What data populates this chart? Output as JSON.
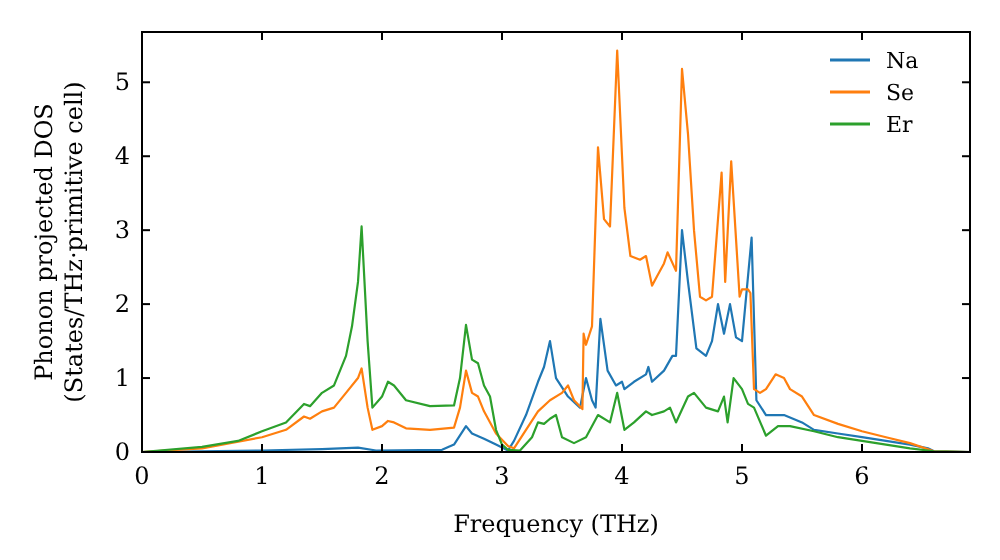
{
  "chart_data": {
    "type": "line",
    "xlabel": "Frequency (THz)",
    "ylabel": "Phonon projected DOS\n(States/THz·primitive cell)",
    "xlim": [
      0,
      6.9
    ],
    "ylim": [
      0,
      5.68
    ],
    "xticks": [
      0,
      1,
      2,
      3,
      4,
      5,
      6
    ],
    "yticks": [
      0,
      1,
      2,
      3,
      4,
      5
    ],
    "legend": "top right",
    "grid": false,
    "line_style": "solid",
    "series": [
      {
        "name": "Na",
        "color": "#1f77b4",
        "x": [
          0,
          1.0,
          1.5,
          1.8,
          1.95,
          2.5,
          2.6,
          2.7,
          2.75,
          2.85,
          2.95,
          3.05,
          3.1,
          3.2,
          3.3,
          3.35,
          3.4,
          3.45,
          3.55,
          3.65,
          3.7,
          3.75,
          3.78,
          3.82,
          3.88,
          3.95,
          4.0,
          4.02,
          4.1,
          4.2,
          4.22,
          4.25,
          4.35,
          4.42,
          4.45,
          4.5,
          4.55,
          4.62,
          4.7,
          4.75,
          4.8,
          4.85,
          4.9,
          4.95,
          5.0,
          5.08,
          5.12,
          5.2,
          5.35,
          5.5,
          5.6,
          5.8,
          6.0,
          6.2,
          6.4,
          6.55,
          6.6,
          6.9
        ],
        "values": [
          0,
          0.02,
          0.04,
          0.06,
          0.02,
          0.03,
          0.1,
          0.35,
          0.25,
          0.18,
          0.1,
          0.02,
          0.15,
          0.5,
          0.95,
          1.15,
          1.5,
          1.0,
          0.75,
          0.6,
          1.0,
          0.7,
          0.6,
          1.8,
          1.1,
          0.9,
          0.95,
          0.85,
          0.95,
          1.05,
          1.15,
          0.95,
          1.1,
          1.3,
          1.3,
          3.0,
          2.3,
          1.4,
          1.3,
          1.5,
          2.0,
          1.6,
          2.0,
          1.55,
          1.5,
          2.9,
          0.7,
          0.5,
          0.5,
          0.4,
          0.3,
          0.25,
          0.2,
          0.15,
          0.1,
          0.05,
          0.01,
          0
        ]
      },
      {
        "name": "Se",
        "color": "#ff7f0e",
        "x": [
          0,
          0.5,
          1.0,
          1.2,
          1.35,
          1.4,
          1.5,
          1.6,
          1.7,
          1.8,
          1.83,
          1.88,
          1.92,
          2.0,
          2.05,
          2.1,
          2.2,
          2.4,
          2.6,
          2.65,
          2.7,
          2.75,
          2.8,
          2.85,
          2.95,
          3.05,
          3.1,
          3.2,
          3.3,
          3.4,
          3.5,
          3.55,
          3.6,
          3.67,
          3.68,
          3.7,
          3.75,
          3.8,
          3.85,
          3.9,
          3.96,
          4.02,
          4.07,
          4.15,
          4.2,
          4.25,
          4.3,
          4.35,
          4.38,
          4.45,
          4.5,
          4.55,
          4.6,
          4.65,
          4.7,
          4.75,
          4.83,
          4.86,
          4.91,
          4.98,
          5.0,
          5.05,
          5.07,
          5.1,
          5.15,
          5.2,
          5.28,
          5.35,
          5.4,
          5.5,
          5.6,
          5.8,
          6.0,
          6.2,
          6.4,
          6.6,
          6.9
        ],
        "values": [
          0,
          0.05,
          0.2,
          0.3,
          0.48,
          0.45,
          0.55,
          0.6,
          0.8,
          1.0,
          1.13,
          0.6,
          0.3,
          0.35,
          0.42,
          0.4,
          0.32,
          0.3,
          0.33,
          0.6,
          1.1,
          0.8,
          0.75,
          0.55,
          0.25,
          0.08,
          0.05,
          0.3,
          0.55,
          0.7,
          0.8,
          0.9,
          0.7,
          0.58,
          1.6,
          1.45,
          1.7,
          4.12,
          3.15,
          3.05,
          5.43,
          3.3,
          2.65,
          2.6,
          2.65,
          2.25,
          2.4,
          2.55,
          2.7,
          2.45,
          5.18,
          4.3,
          3.0,
          2.1,
          2.05,
          2.1,
          3.78,
          2.3,
          3.93,
          2.1,
          2.2,
          2.2,
          2.15,
          0.85,
          0.8,
          0.85,
          1.05,
          1.0,
          0.85,
          0.75,
          0.5,
          0.38,
          0.28,
          0.2,
          0.12,
          0.01,
          0
        ]
      },
      {
        "name": "Er",
        "color": "#2ca02c",
        "x": [
          0,
          0.5,
          0.8,
          1.0,
          1.2,
          1.35,
          1.4,
          1.5,
          1.6,
          1.7,
          1.75,
          1.8,
          1.83,
          1.88,
          1.92,
          2.0,
          2.05,
          2.1,
          2.2,
          2.4,
          2.6,
          2.65,
          2.7,
          2.75,
          2.8,
          2.85,
          2.9,
          2.95,
          3.0,
          3.05,
          3.15,
          3.25,
          3.3,
          3.35,
          3.4,
          3.45,
          3.5,
          3.6,
          3.7,
          3.8,
          3.9,
          3.96,
          4.02,
          4.1,
          4.2,
          4.25,
          4.35,
          4.4,
          4.45,
          4.55,
          4.6,
          4.7,
          4.8,
          4.85,
          4.88,
          4.93,
          5.0,
          5.05,
          5.1,
          5.2,
          5.3,
          5.4,
          5.6,
          5.8,
          6.0,
          6.2,
          6.4,
          6.6,
          6.9
        ],
        "values": [
          0,
          0.07,
          0.15,
          0.28,
          0.4,
          0.65,
          0.62,
          0.8,
          0.9,
          1.3,
          1.7,
          2.3,
          3.05,
          1.5,
          0.6,
          0.75,
          0.95,
          0.9,
          0.7,
          0.62,
          0.63,
          1.0,
          1.72,
          1.25,
          1.2,
          0.9,
          0.75,
          0.3,
          0.1,
          0.03,
          0.02,
          0.2,
          0.4,
          0.38,
          0.45,
          0.5,
          0.2,
          0.12,
          0.2,
          0.5,
          0.4,
          0.8,
          0.3,
          0.4,
          0.55,
          0.5,
          0.55,
          0.6,
          0.4,
          0.75,
          0.8,
          0.6,
          0.55,
          0.75,
          0.4,
          1.0,
          0.85,
          0.65,
          0.6,
          0.22,
          0.35,
          0.35,
          0.28,
          0.2,
          0.15,
          0.1,
          0.05,
          0.01,
          0
        ]
      }
    ]
  }
}
